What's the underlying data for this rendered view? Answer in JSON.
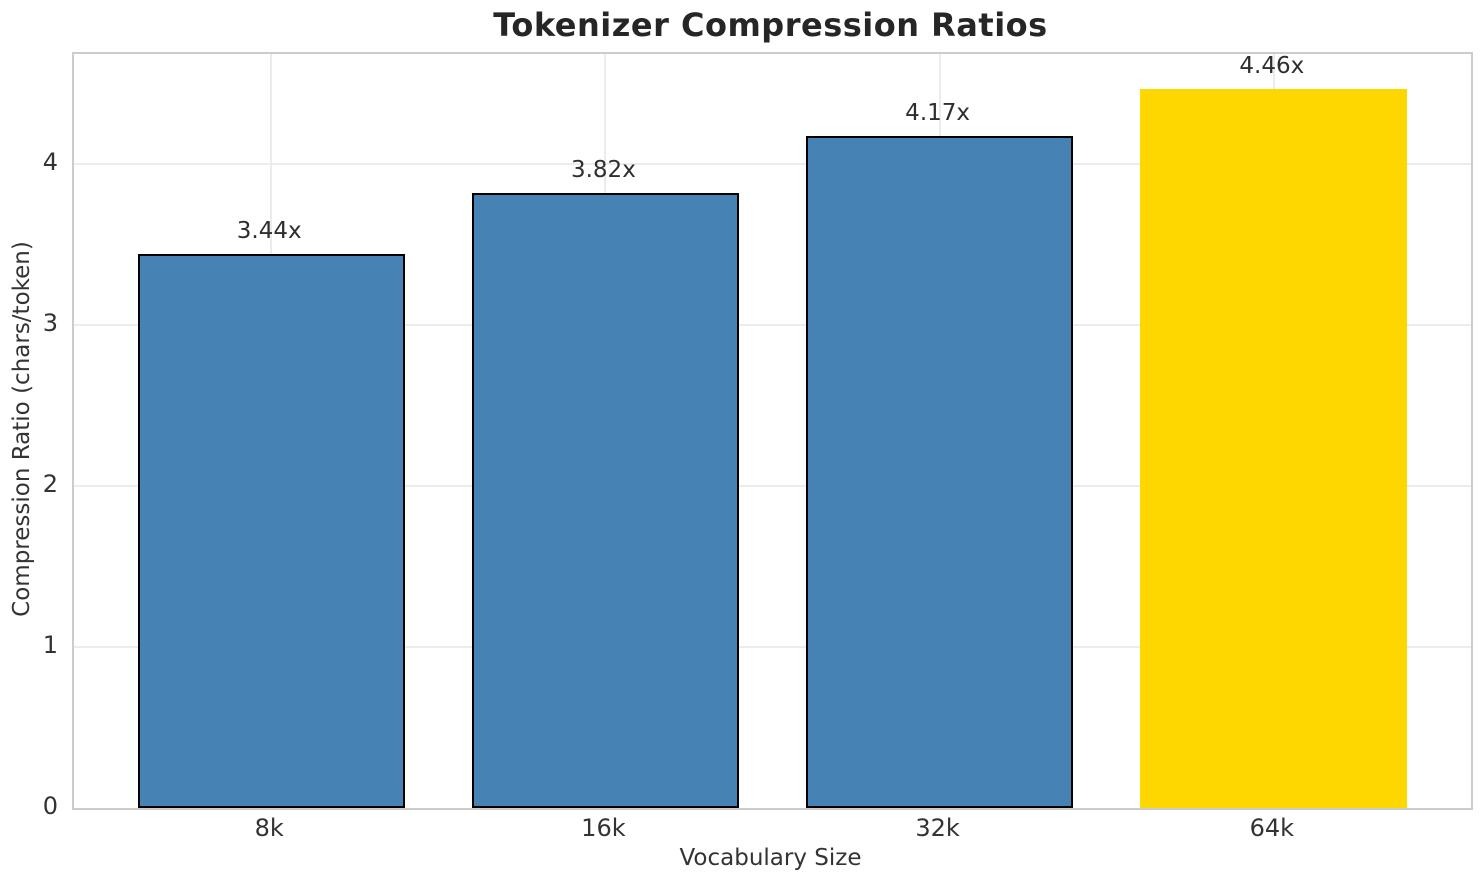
{
  "chart_data": {
    "type": "bar",
    "title": "Tokenizer Compression Ratios",
    "xlabel": "Vocabulary Size",
    "ylabel": "Compression Ratio (chars/token)",
    "categories": [
      "8k",
      "16k",
      "32k",
      "64k"
    ],
    "values": [
      3.44,
      3.82,
      4.17,
      4.46
    ],
    "bar_labels": [
      "3.44x",
      "3.82x",
      "4.17x",
      "4.46x"
    ],
    "ylim": [
      0,
      4.68
    ],
    "yticks": [
      0,
      1,
      2,
      3,
      4
    ],
    "ytick_labels": [
      "0",
      "1",
      "2",
      "3",
      "4"
    ],
    "grid": true,
    "legend": "none",
    "bar_colors": [
      "#4682B4",
      "#4682B4",
      "#4682B4",
      "#FFD700"
    ],
    "bar_edge_colors": [
      "#000000",
      "#000000",
      "#000000",
      "none"
    ],
    "series_color": "#4682B4",
    "highlight_color": "#FFD700"
  },
  "style_colors": {
    "grid": "#ececec",
    "spine": "#cccccc",
    "title_text": "#262626",
    "tick_text": "#333333",
    "annotation_text": "#2e2e2e"
  }
}
